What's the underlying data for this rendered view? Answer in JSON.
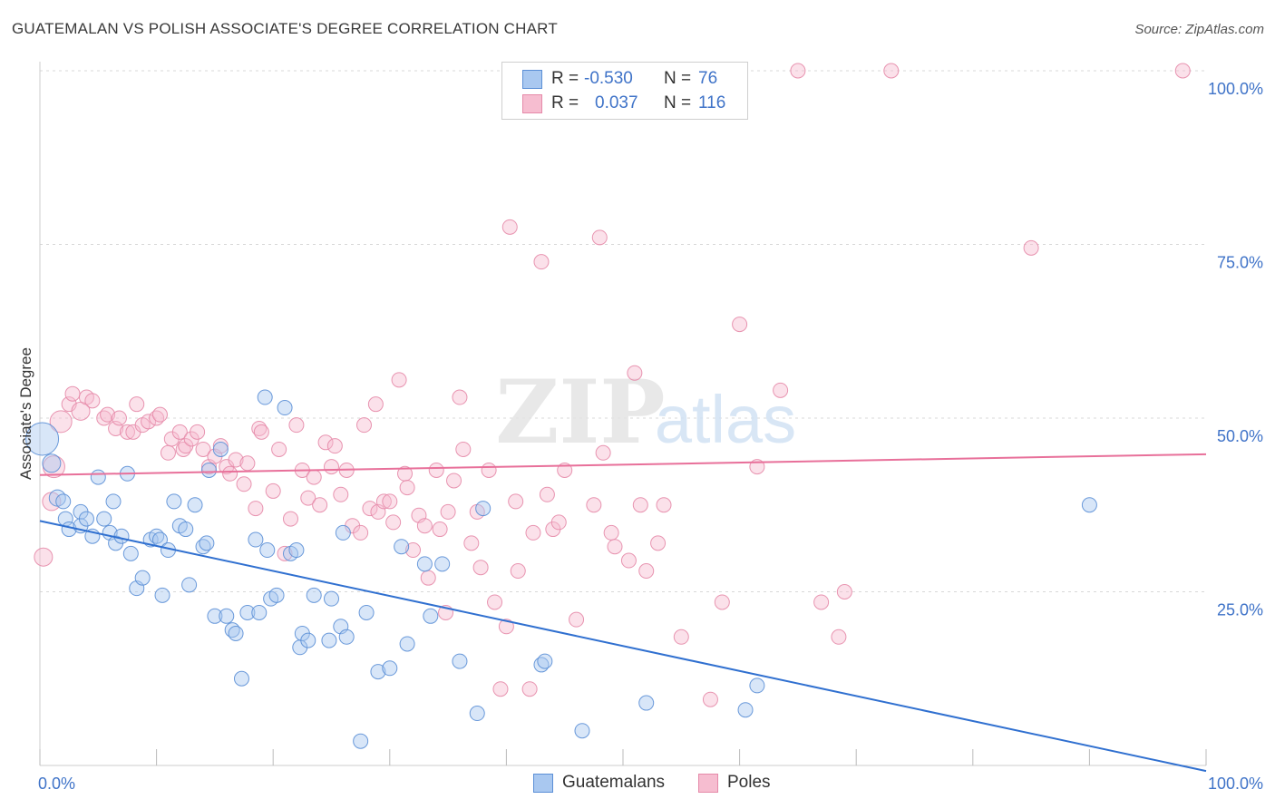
{
  "title": "GUATEMALAN VS POLISH ASSOCIATE'S DEGREE CORRELATION CHART",
  "source": "Source: ZipAtlas.com",
  "watermark": {
    "zip": "ZIP",
    "atlas": "atlas"
  },
  "colors": {
    "blue_fill": "#a9c8f0",
    "blue_stroke": "#5b8fd6",
    "blue_line": "#3070d0",
    "pink_fill": "#f6bdd0",
    "pink_stroke": "#e58aa9",
    "pink_line": "#e8709a",
    "grid": "#d8d8d8",
    "tick_label": "#3f73c8",
    "axis_label": "#333333"
  },
  "legend": {
    "rows": [
      {
        "r_label": "R =",
        "r_value": "-0.530",
        "n_label": "N =",
        "n_value": "76",
        "swatch_fill": "#a9c8f0",
        "swatch_stroke": "#5b8fd6"
      },
      {
        "r_label": "R =",
        "r_value": "0.037",
        "n_label": "N =",
        "n_value": "116",
        "swatch_fill": "#f6bdd0",
        "swatch_stroke": "#e58aa9"
      }
    ]
  },
  "bottom_legend": [
    {
      "label": "Guatemalans",
      "swatch_fill": "#a9c8f0",
      "swatch_stroke": "#5b8fd6"
    },
    {
      "label": "Poles",
      "swatch_fill": "#f6bdd0",
      "swatch_stroke": "#e58aa9"
    }
  ],
  "chart_data": {
    "type": "scatter",
    "xlabel": "",
    "ylabel": "Associate's Degree",
    "xlim": [
      0,
      100
    ],
    "ylim": [
      0,
      100
    ],
    "x_tick_labels": [
      {
        "value": 0,
        "label": "0.0%"
      },
      {
        "value": 100,
        "label": "100.0%"
      }
    ],
    "y_tick_labels": [
      {
        "value": 25,
        "label": "25.0%"
      },
      {
        "value": 50,
        "label": "50.0%"
      },
      {
        "value": 75,
        "label": "75.0%"
      },
      {
        "value": 100,
        "label": "100.0%"
      }
    ],
    "grid": true,
    "legend_position": "top-center",
    "series": [
      {
        "name": "Guatemalans",
        "r": -0.53,
        "n": 76,
        "trend": {
          "x": [
            0,
            100
          ],
          "y": [
            35.2,
            -0.8
          ]
        },
        "points": [
          [
            0.2,
            47.0,
            18
          ],
          [
            1.0,
            43.5,
            10
          ],
          [
            1.5,
            38.5,
            9
          ],
          [
            2.0,
            38.0,
            8
          ],
          [
            2.2,
            35.5,
            8
          ],
          [
            2.5,
            34.0,
            8
          ],
          [
            3.5,
            36.5,
            8
          ],
          [
            3.5,
            34.5,
            8
          ],
          [
            4.0,
            35.5,
            8
          ],
          [
            4.5,
            33.0,
            8
          ],
          [
            5.0,
            41.5,
            8
          ],
          [
            5.5,
            35.5,
            8
          ],
          [
            6.0,
            33.5,
            8
          ],
          [
            6.3,
            38.0,
            8
          ],
          [
            6.5,
            32.0,
            8
          ],
          [
            7.0,
            33.0,
            8
          ],
          [
            7.5,
            42.0,
            8
          ],
          [
            7.8,
            30.5,
            8
          ],
          [
            8.3,
            25.5,
            8
          ],
          [
            8.8,
            27.0,
            8
          ],
          [
            9.5,
            32.5,
            8
          ],
          [
            10.0,
            33.0,
            8
          ],
          [
            10.3,
            32.5,
            8
          ],
          [
            10.5,
            24.5,
            8
          ],
          [
            11.0,
            31.0,
            8
          ],
          [
            11.5,
            38.0,
            8
          ],
          [
            12.0,
            34.5,
            8
          ],
          [
            12.5,
            34.0,
            8
          ],
          [
            12.8,
            26.0,
            8
          ],
          [
            13.3,
            37.5,
            8
          ],
          [
            14.0,
            31.5,
            8
          ],
          [
            14.3,
            32.0,
            8
          ],
          [
            14.5,
            42.5,
            8
          ],
          [
            15.0,
            21.5,
            8
          ],
          [
            15.5,
            45.5,
            8
          ],
          [
            16.0,
            21.5,
            8
          ],
          [
            16.5,
            19.5,
            8
          ],
          [
            16.8,
            19.0,
            8
          ],
          [
            17.3,
            12.5,
            8
          ],
          [
            17.8,
            22.0,
            8
          ],
          [
            18.5,
            32.5,
            8
          ],
          [
            18.8,
            22.0,
            8
          ],
          [
            19.3,
            53.0,
            8
          ],
          [
            19.5,
            31.0,
            8
          ],
          [
            19.8,
            24.0,
            8
          ],
          [
            20.3,
            24.5,
            8
          ],
          [
            21.0,
            51.5,
            8
          ],
          [
            21.5,
            30.5,
            8
          ],
          [
            22.0,
            31.0,
            8
          ],
          [
            22.3,
            17.0,
            8
          ],
          [
            22.5,
            19.0,
            8
          ],
          [
            23.0,
            18.0,
            8
          ],
          [
            23.5,
            24.5,
            8
          ],
          [
            24.8,
            18.0,
            8
          ],
          [
            25.0,
            24.0,
            8
          ],
          [
            25.8,
            20.0,
            8
          ],
          [
            26.0,
            33.5,
            8
          ],
          [
            26.3,
            18.5,
            8
          ],
          [
            27.5,
            3.5,
            8
          ],
          [
            28.0,
            22.0,
            8
          ],
          [
            29.0,
            13.5,
            8
          ],
          [
            30.0,
            14.0,
            8
          ],
          [
            31.0,
            31.5,
            8
          ],
          [
            31.5,
            17.5,
            8
          ],
          [
            33.0,
            29.0,
            8
          ],
          [
            33.5,
            21.5,
            8
          ],
          [
            34.5,
            29.0,
            8
          ],
          [
            36.0,
            15.0,
            8
          ],
          [
            37.5,
            7.5,
            8
          ],
          [
            38.0,
            37.0,
            8
          ],
          [
            43.0,
            14.5,
            8
          ],
          [
            43.3,
            15.0,
            8
          ],
          [
            46.5,
            5.0,
            8
          ],
          [
            52.0,
            9.0,
            8
          ],
          [
            60.5,
            8.0,
            8
          ],
          [
            61.5,
            11.5,
            8
          ],
          [
            90.0,
            37.5,
            8
          ]
        ]
      },
      {
        "name": "Poles",
        "r": 0.037,
        "n": 116,
        "trend": {
          "x": [
            0,
            100
          ],
          "y": [
            41.8,
            44.8
          ]
        },
        "points": [
          [
            0.3,
            30.0,
            10
          ],
          [
            1.0,
            38.0,
            10
          ],
          [
            1.2,
            43.0,
            12
          ],
          [
            1.8,
            49.5,
            12
          ],
          [
            2.5,
            52.0,
            8
          ],
          [
            2.8,
            53.5,
            8
          ],
          [
            3.5,
            51.0,
            10
          ],
          [
            4.0,
            53.0,
            8
          ],
          [
            4.5,
            52.5,
            8
          ],
          [
            5.5,
            50.0,
            8
          ],
          [
            5.8,
            50.5,
            8
          ],
          [
            6.5,
            48.5,
            8
          ],
          [
            6.8,
            50.0,
            8
          ],
          [
            7.5,
            48.0,
            8
          ],
          [
            8.0,
            48.0,
            8
          ],
          [
            8.3,
            52.0,
            8
          ],
          [
            8.8,
            49.0,
            8
          ],
          [
            9.3,
            49.5,
            8
          ],
          [
            10.0,
            50.0,
            8
          ],
          [
            10.3,
            50.5,
            8
          ],
          [
            11.0,
            45.0,
            8
          ],
          [
            11.3,
            47.0,
            8
          ],
          [
            12.0,
            48.0,
            8
          ],
          [
            12.3,
            45.5,
            8
          ],
          [
            12.5,
            46.0,
            8
          ],
          [
            13.0,
            47.0,
            8
          ],
          [
            13.5,
            48.0,
            8
          ],
          [
            14.0,
            45.5,
            8
          ],
          [
            14.5,
            43.0,
            8
          ],
          [
            15.0,
            44.5,
            8
          ],
          [
            15.5,
            46.0,
            8
          ],
          [
            16.0,
            43.0,
            8
          ],
          [
            16.3,
            42.0,
            8
          ],
          [
            16.8,
            44.0,
            8
          ],
          [
            17.5,
            40.5,
            8
          ],
          [
            17.8,
            43.5,
            8
          ],
          [
            18.5,
            37.0,
            8
          ],
          [
            18.8,
            48.5,
            8
          ],
          [
            19.0,
            48.0,
            8
          ],
          [
            20.0,
            39.5,
            8
          ],
          [
            20.5,
            45.5,
            8
          ],
          [
            21.0,
            30.5,
            8
          ],
          [
            21.5,
            35.5,
            8
          ],
          [
            22.0,
            49.0,
            8
          ],
          [
            22.5,
            42.5,
            8
          ],
          [
            23.0,
            38.5,
            8
          ],
          [
            23.5,
            41.5,
            8
          ],
          [
            24.0,
            37.5,
            8
          ],
          [
            24.5,
            46.5,
            8
          ],
          [
            25.0,
            43.0,
            8
          ],
          [
            25.3,
            46.0,
            8
          ],
          [
            25.8,
            39.0,
            8
          ],
          [
            26.3,
            42.5,
            8
          ],
          [
            26.8,
            34.5,
            8
          ],
          [
            27.5,
            33.5,
            8
          ],
          [
            27.8,
            49.0,
            8
          ],
          [
            28.3,
            37.0,
            8
          ],
          [
            28.8,
            52.0,
            8
          ],
          [
            29.0,
            36.5,
            8
          ],
          [
            29.5,
            38.0,
            8
          ],
          [
            30.0,
            38.0,
            8
          ],
          [
            30.3,
            35.0,
            8
          ],
          [
            30.8,
            55.5,
            8
          ],
          [
            31.3,
            42.0,
            8
          ],
          [
            31.5,
            40.0,
            8
          ],
          [
            32.0,
            31.0,
            8
          ],
          [
            32.5,
            36.0,
            8
          ],
          [
            33.0,
            34.5,
            8
          ],
          [
            33.3,
            27.0,
            8
          ],
          [
            34.0,
            42.5,
            8
          ],
          [
            34.3,
            34.0,
            8
          ],
          [
            34.8,
            22.0,
            8
          ],
          [
            35.0,
            36.5,
            8
          ],
          [
            35.5,
            41.0,
            8
          ],
          [
            36.0,
            53.0,
            8
          ],
          [
            36.3,
            45.5,
            8
          ],
          [
            37.0,
            32.0,
            8
          ],
          [
            37.5,
            36.5,
            8
          ],
          [
            37.8,
            28.5,
            8
          ],
          [
            38.5,
            42.5,
            8
          ],
          [
            39.0,
            23.5,
            8
          ],
          [
            39.5,
            11.0,
            8
          ],
          [
            40.0,
            20.0,
            8
          ],
          [
            40.3,
            77.5,
            8
          ],
          [
            40.8,
            38.0,
            8
          ],
          [
            41.0,
            28.0,
            8
          ],
          [
            42.0,
            11.0,
            8
          ],
          [
            42.3,
            33.5,
            8
          ],
          [
            43.0,
            72.5,
            8
          ],
          [
            43.5,
            39.0,
            8
          ],
          [
            44.0,
            34.0,
            8
          ],
          [
            44.5,
            35.0,
            8
          ],
          [
            45.0,
            42.5,
            8
          ],
          [
            46.0,
            21.0,
            8
          ],
          [
            47.5,
            37.5,
            8
          ],
          [
            48.0,
            76.0,
            8
          ],
          [
            48.3,
            45.0,
            8
          ],
          [
            49.0,
            33.5,
            8
          ],
          [
            49.3,
            31.5,
            8
          ],
          [
            50.5,
            29.5,
            8
          ],
          [
            51.0,
            56.5,
            8
          ],
          [
            51.5,
            37.5,
            8
          ],
          [
            52.0,
            28.0,
            8
          ],
          [
            53.0,
            32.0,
            8
          ],
          [
            53.5,
            37.5,
            8
          ],
          [
            55.0,
            18.5,
            8
          ],
          [
            57.5,
            9.5,
            8
          ],
          [
            58.5,
            23.5,
            8
          ],
          [
            60.0,
            63.5,
            8
          ],
          [
            61.5,
            43.0,
            8
          ],
          [
            63.5,
            54.0,
            8
          ],
          [
            65.0,
            100.0,
            8
          ],
          [
            67.0,
            23.5,
            8
          ],
          [
            68.5,
            18.5,
            8
          ],
          [
            69.0,
            25.0,
            8
          ],
          [
            73.0,
            100.0,
            8
          ],
          [
            85.0,
            74.5,
            8
          ],
          [
            98.0,
            100.0,
            8
          ]
        ]
      }
    ]
  }
}
